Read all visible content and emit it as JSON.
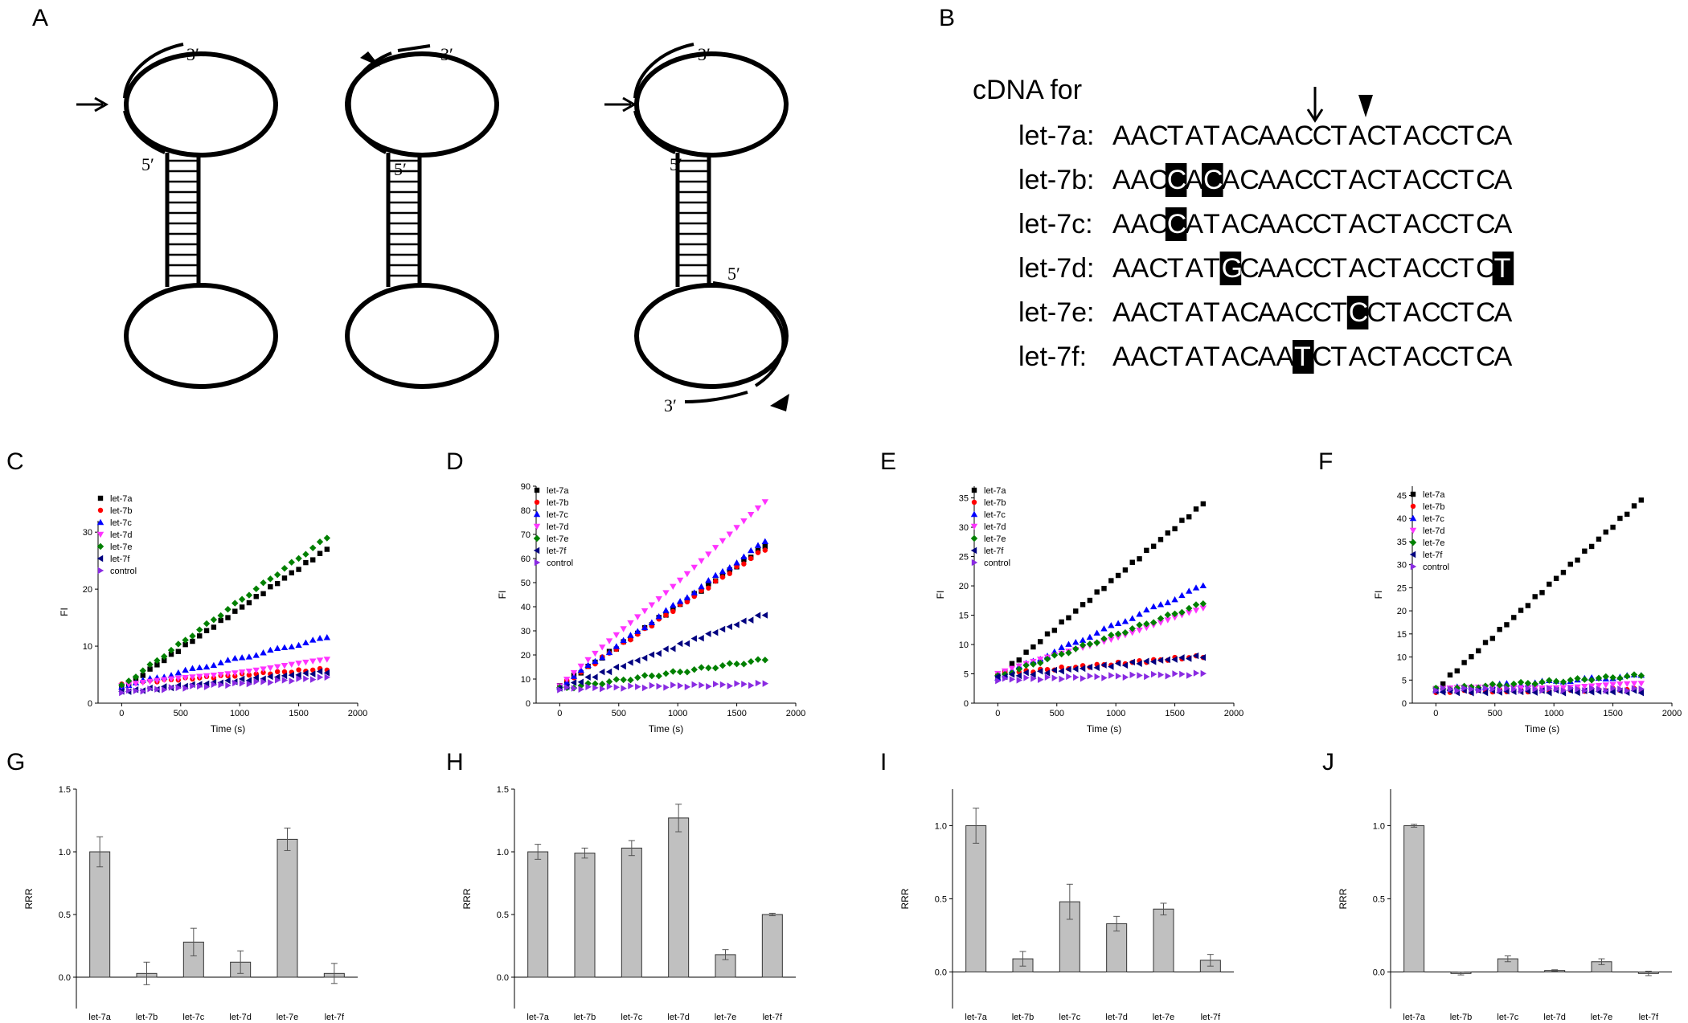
{
  "panels": {
    "A": "A",
    "B": "B",
    "C": "C",
    "D": "D",
    "E": "E",
    "F": "F",
    "G": "G",
    "H": "H",
    "I": "I",
    "J": "J"
  },
  "hairpins": {
    "three_prime": "3′",
    "five_prime": "5′"
  },
  "sequences": {
    "header": "cDNA for",
    "rows": [
      {
        "label": "let-7a:",
        "seq": "AACTATACAACCTACTACCTCA",
        "hi": []
      },
      {
        "label": "let-7b:",
        "seq": "AACCACACAACCTACTACCTCA",
        "hi": [
          3,
          5
        ]
      },
      {
        "label": "let-7c:",
        "seq": "AACCATACAACCTACTACCTCA",
        "hi": [
          3
        ]
      },
      {
        "label": "let-7d:",
        "seq": "AACTATGCAACCTACTACCTCT",
        "hi": [
          6,
          21
        ]
      },
      {
        "label": "let-7e:",
        "seq": "AACTATACAACCTCCTACCTCA",
        "hi": [
          13
        ]
      },
      {
        "label": "let-7f:",
        "seq": "AACTATACAATCTACTACCTCA",
        "hi": [
          10
        ]
      }
    ]
  },
  "legend_labels": [
    "let-7a",
    "let-7b",
    "let-7c",
    "let-7d",
    "let-7e",
    "let-7f",
    "control"
  ],
  "colors": {
    "let-7a": "#000000",
    "let-7b": "#ff0000",
    "let-7c": "#0000ff",
    "let-7d": "#ff33ff",
    "let-7e": "#008000",
    "let-7f": "#000080",
    "control": "#8a2be2",
    "bar_fill": "#c0c0c0"
  },
  "chart_data": [
    {
      "panel": "C",
      "type": "scatter",
      "xlabel": "Time (s)",
      "ylabel": "FI",
      "xlim": [
        -200,
        2000
      ],
      "ylim": [
        0,
        32
      ],
      "xticks": [
        0,
        500,
        1000,
        1500,
        2000
      ],
      "yticks": [
        0,
        10,
        20,
        30
      ],
      "series": [
        {
          "name": "let-7a",
          "y0": 2.5,
          "y1": 27
        },
        {
          "name": "let-7b",
          "y0": 3.5,
          "y1": 6
        },
        {
          "name": "let-7c",
          "y0": 3.0,
          "y1": 11.5
        },
        {
          "name": "let-7d",
          "y0": 3.0,
          "y1": 7.5
        },
        {
          "name": "let-7e",
          "y0": 3.0,
          "y1": 29
        },
        {
          "name": "let-7f",
          "y0": 2.0,
          "y1": 5.5
        },
        {
          "name": "control",
          "y0": 2.0,
          "y1": 4.5
        }
      ]
    },
    {
      "panel": "D",
      "type": "scatter",
      "xlabel": "Time (s)",
      "ylabel": "FI",
      "xlim": [
        -200,
        2000
      ],
      "ylim": [
        0,
        90
      ],
      "xticks": [
        0,
        500,
        1000,
        1500,
        2000
      ],
      "yticks": [
        0,
        10,
        20,
        30,
        40,
        50,
        60,
        70,
        80,
        90
      ],
      "series": [
        {
          "name": "let-7a",
          "y0": 7,
          "y1": 65
        },
        {
          "name": "let-7b",
          "y0": 7,
          "y1": 64
        },
        {
          "name": "let-7c",
          "y0": 7,
          "y1": 67
        },
        {
          "name": "let-7d",
          "y0": 7,
          "y1": 83
        },
        {
          "name": "let-7e",
          "y0": 6,
          "y1": 18
        },
        {
          "name": "let-7f",
          "y0": 6,
          "y1": 37
        },
        {
          "name": "control",
          "y0": 6,
          "y1": 8
        }
      ]
    },
    {
      "panel": "E",
      "type": "scatter",
      "xlabel": "Time (s)",
      "ylabel": "FI",
      "xlim": [
        -200,
        2000
      ],
      "ylim": [
        0,
        37
      ],
      "xticks": [
        0,
        500,
        1000,
        1500,
        2000
      ],
      "yticks": [
        0,
        5,
        10,
        15,
        20,
        25,
        30,
        35
      ],
      "series": [
        {
          "name": "let-7a",
          "y0": 4.5,
          "y1": 34
        },
        {
          "name": "let-7b",
          "y0": 5.0,
          "y1": 8
        },
        {
          "name": "let-7c",
          "y0": 4.5,
          "y1": 20
        },
        {
          "name": "let-7d",
          "y0": 5.0,
          "y1": 16
        },
        {
          "name": "let-7e",
          "y0": 4.5,
          "y1": 17
        },
        {
          "name": "let-7f",
          "y0": 4.5,
          "y1": 8
        },
        {
          "name": "control",
          "y0": 4.0,
          "y1": 5
        }
      ]
    },
    {
      "panel": "F",
      "type": "scatter",
      "xlabel": "Time (s)",
      "ylabel": "FI",
      "xlim": [
        -200,
        2000
      ],
      "ylim": [
        0,
        47
      ],
      "xticks": [
        0,
        500,
        1000,
        1500,
        2000
      ],
      "yticks": [
        0,
        5,
        10,
        15,
        20,
        25,
        30,
        35,
        40,
        45
      ],
      "series": [
        {
          "name": "let-7a",
          "y0": 3,
          "y1": 44
        },
        {
          "name": "let-7b",
          "y0": 2.5,
          "y1": 3
        },
        {
          "name": "let-7c",
          "y0": 3,
          "y1": 6
        },
        {
          "name": "let-7d",
          "y0": 3,
          "y1": 4
        },
        {
          "name": "let-7e",
          "y0": 3,
          "y1": 6
        },
        {
          "name": "let-7f",
          "y0": 2.5,
          "y1": 2.5
        },
        {
          "name": "control",
          "y0": 3,
          "y1": 3
        }
      ]
    },
    {
      "panel": "G",
      "type": "bar",
      "ylabel": "RRR",
      "categories": [
        "let-7a",
        "let-7b",
        "let-7c",
        "let-7d",
        "let-7e",
        "let-7f"
      ],
      "values": [
        1.0,
        0.03,
        0.28,
        0.12,
        1.1,
        0.03
      ],
      "errors": [
        0.12,
        0.09,
        0.11,
        0.09,
        0.09,
        0.08
      ],
      "ylim": [
        -0.25,
        1.5
      ],
      "yticks": [
        "0.0",
        "0.5",
        "1.0",
        "1.5"
      ],
      "ytick_values": [
        0,
        0.5,
        1.0,
        1.5
      ]
    },
    {
      "panel": "H",
      "type": "bar",
      "ylabel": "RRR",
      "categories": [
        "let-7a",
        "let-7b",
        "let-7c",
        "let-7d",
        "let-7e",
        "let-7f"
      ],
      "values": [
        1.0,
        0.99,
        1.03,
        1.27,
        0.18,
        0.5
      ],
      "errors": [
        0.06,
        0.04,
        0.06,
        0.11,
        0.04,
        0.01
      ],
      "ylim": [
        -0.25,
        1.5
      ],
      "yticks": [
        "0.0",
        "0.5",
        "1.0",
        "1.5"
      ],
      "ytick_values": [
        0,
        0.5,
        1.0,
        1.5
      ]
    },
    {
      "panel": "I",
      "type": "bar",
      "ylabel": "RRR",
      "categories": [
        "let-7a",
        "let-7b",
        "let-7c",
        "let-7d",
        "let-7e",
        "let-7f"
      ],
      "values": [
        1.0,
        0.09,
        0.48,
        0.33,
        0.43,
        0.08
      ],
      "errors": [
        0.12,
        0.05,
        0.12,
        0.05,
        0.04,
        0.04
      ],
      "ylim": [
        -0.25,
        1.25
      ],
      "yticks": [
        "0.0",
        "0.5",
        "1.0"
      ],
      "ytick_values": [
        0,
        0.5,
        1.0
      ]
    },
    {
      "panel": "J",
      "type": "bar",
      "ylabel": "RRR",
      "categories": [
        "let-7a",
        "let-7b",
        "let-7c",
        "let-7d",
        "let-7e",
        "let-7f"
      ],
      "values": [
        1.0,
        -0.01,
        0.09,
        0.01,
        0.07,
        -0.01
      ],
      "errors": [
        0.01,
        0.01,
        0.02,
        0.005,
        0.02,
        0.015
      ],
      "ylim": [
        -0.25,
        1.25
      ],
      "yticks": [
        "0.0",
        "0.5",
        "1.0"
      ],
      "ytick_values": [
        0,
        0.5,
        1.0
      ]
    }
  ]
}
